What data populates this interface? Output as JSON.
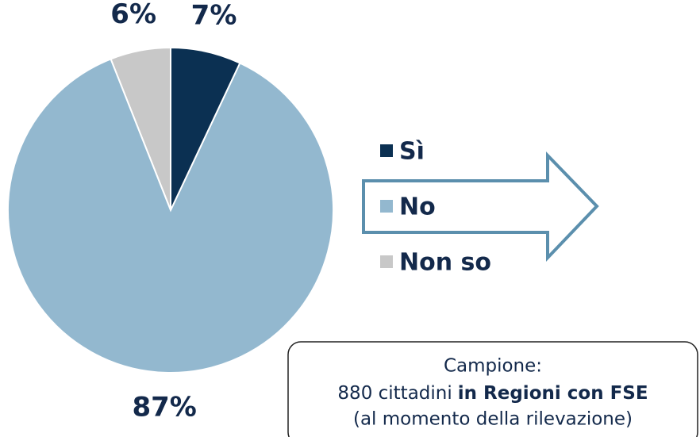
{
  "chart_data": {
    "type": "pie",
    "categories": [
      "Sì",
      "No",
      "Non so"
    ],
    "values": [
      7,
      87,
      6
    ],
    "value_labels": [
      "7%",
      "87%",
      "6%"
    ],
    "colors": [
      "#0b3052",
      "#93b8cf",
      "#c8c8c8"
    ],
    "note": {
      "title": "Campione:",
      "line": [
        "880 cittadini",
        "in Regioni con FSE"
      ],
      "footer": "(al momento della rilevazione)"
    }
  }
}
